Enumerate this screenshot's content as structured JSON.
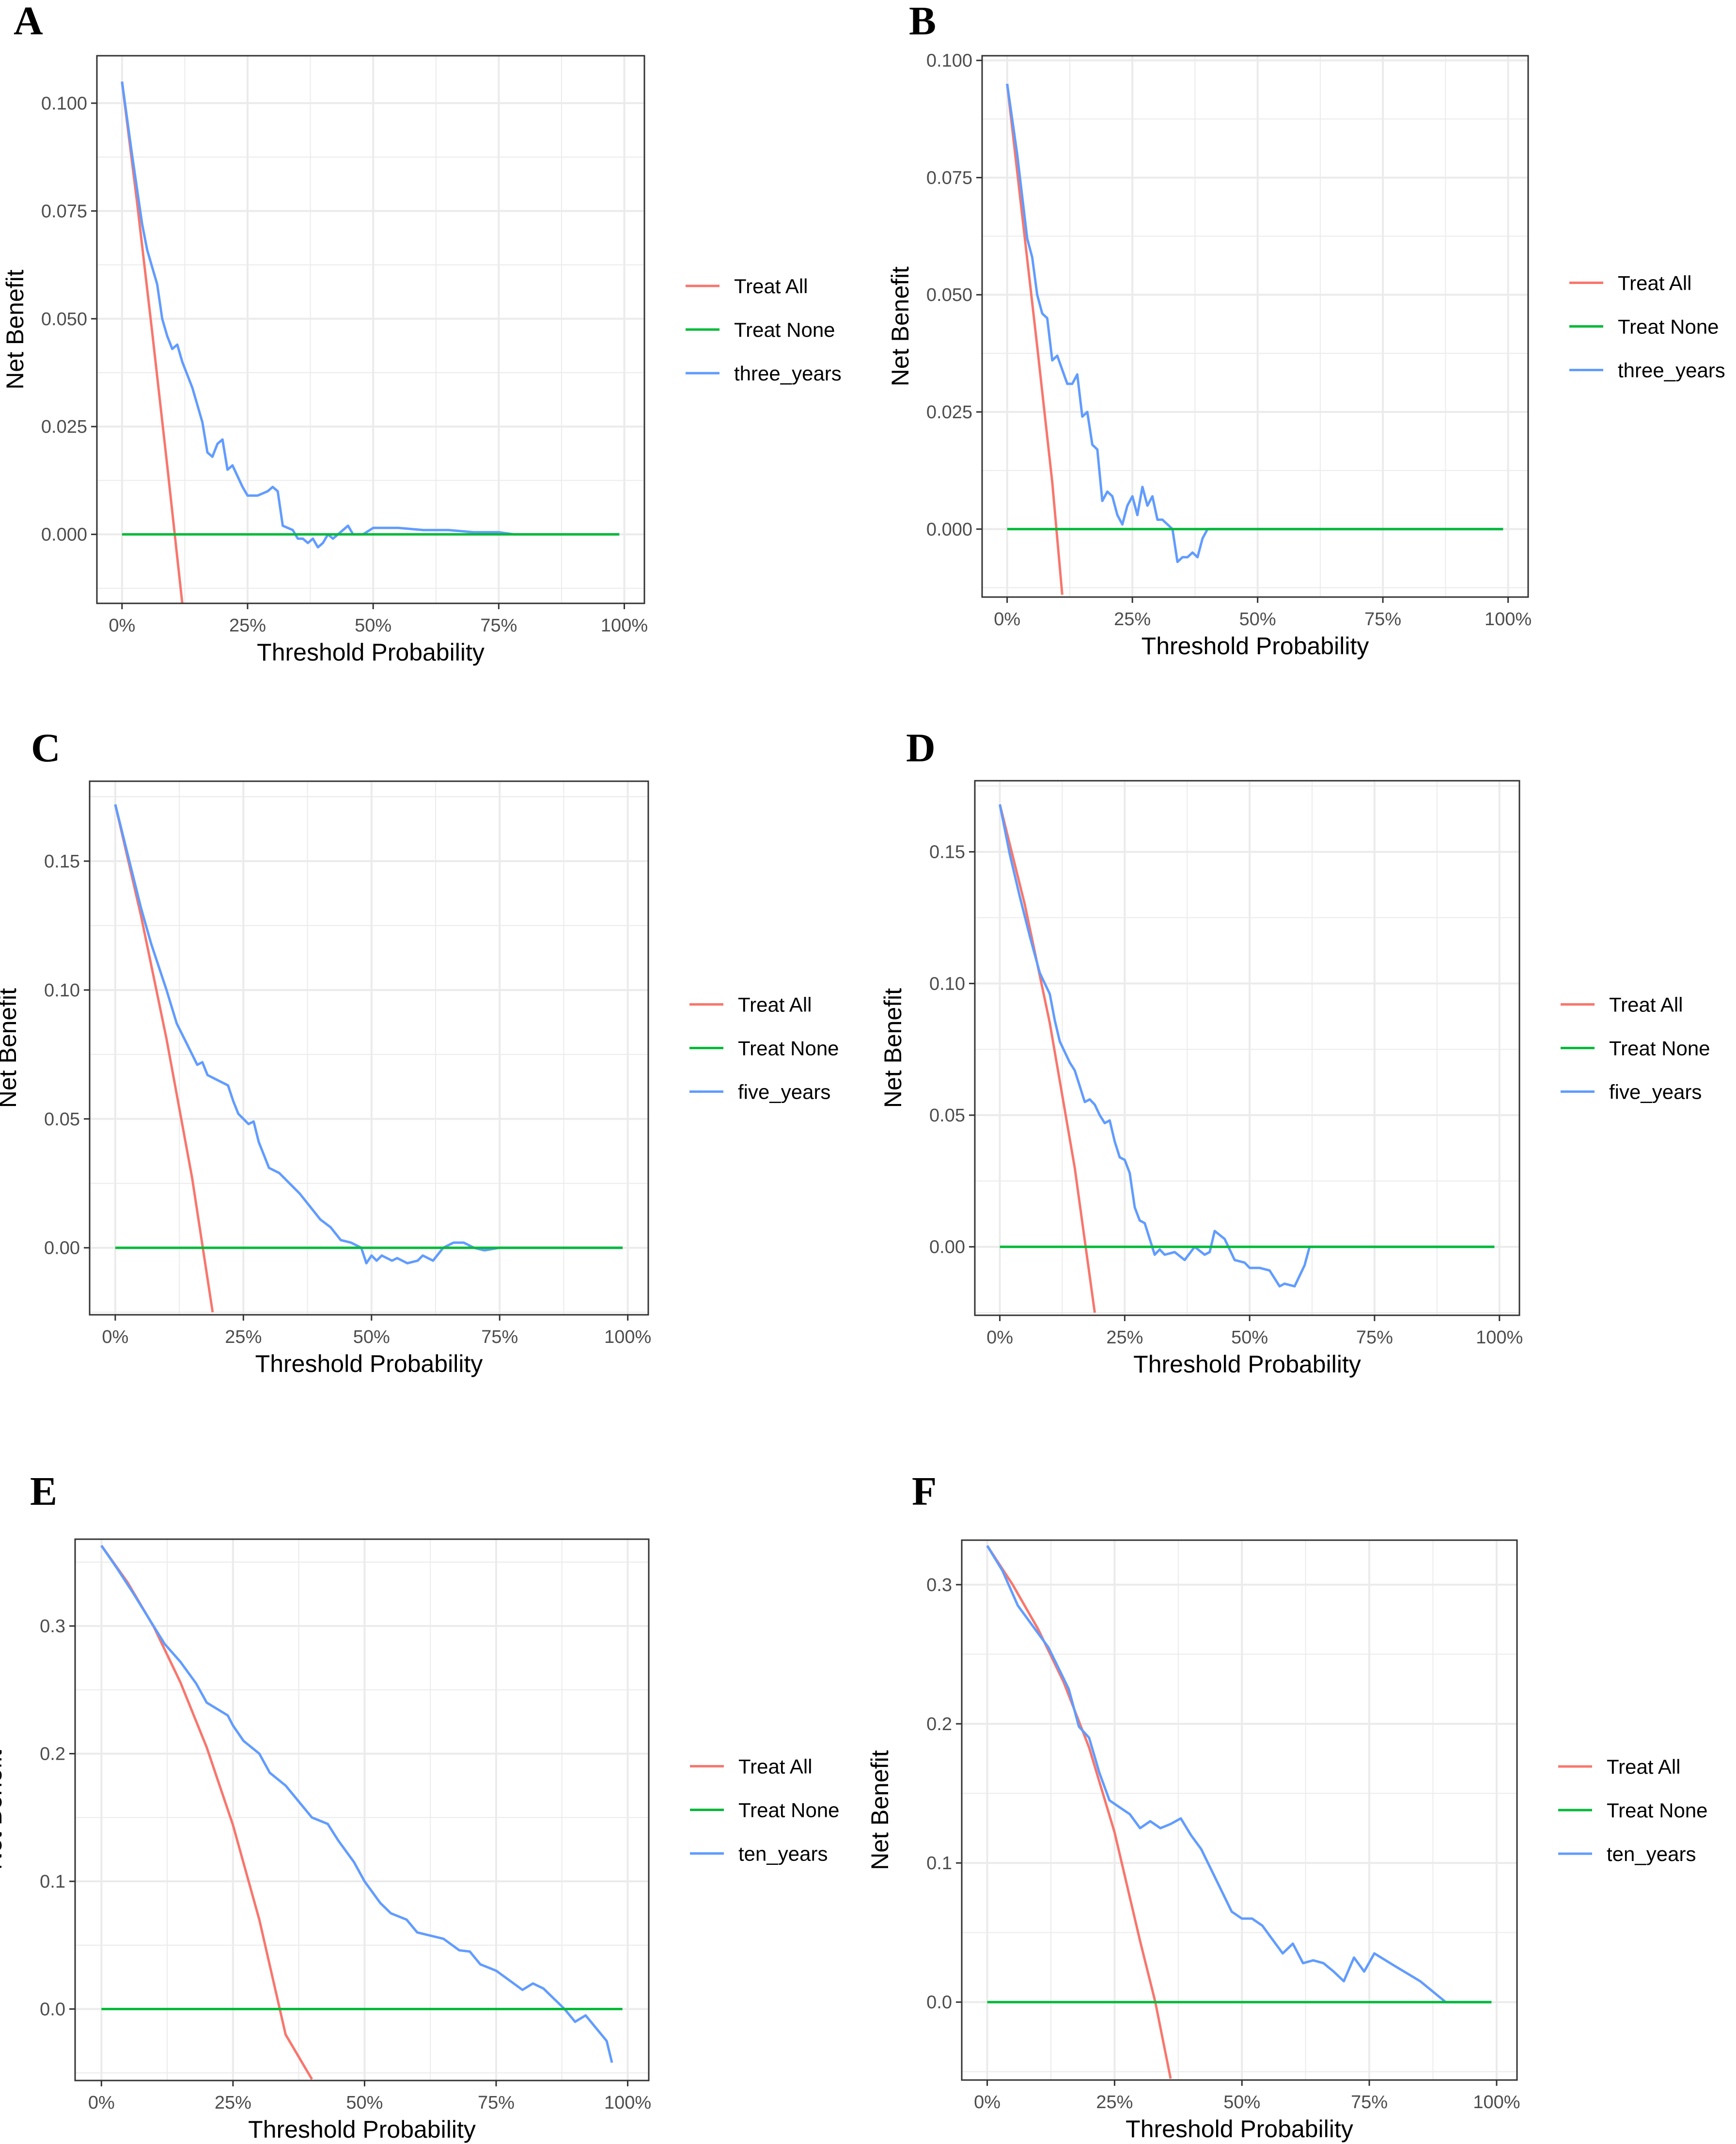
{
  "legend": {
    "treat_all": "Treat All",
    "treat_none": "Treat None"
  },
  "colors": {
    "treat_all": "#F8766D",
    "treat_none": "#00BA38",
    "model": "#619CFF",
    "grid": "#EBEBEB",
    "border": "#333333"
  },
  "chart_data": [
    {
      "panel": "A",
      "type": "line",
      "xlabel": "Threshold Probability",
      "ylabel": "Net Benefit",
      "xlim": [
        -0.05,
        1.04
      ],
      "ylim": [
        -0.016,
        0.111
      ],
      "xticks": [
        0,
        0.25,
        0.5,
        0.75,
        1.0
      ],
      "xtick_labels": [
        "0%",
        "25%",
        "50%",
        "75%",
        "100%"
      ],
      "yticks": [
        0,
        0.025,
        0.05,
        0.075,
        0.1
      ],
      "ytick_labels": [
        "0.000",
        "0.025",
        "0.050",
        "0.075",
        "0.100"
      ],
      "series": [
        {
          "name": "Treat All",
          "x": [
            0,
            0.03,
            0.06,
            0.09,
            0.12
          ],
          "y": [
            0.105,
            0.077,
            0.047,
            0.016,
            -0.016
          ]
        },
        {
          "name": "Treat None",
          "x": [
            0,
            0.99
          ],
          "y": [
            0,
            0
          ]
        },
        {
          "name": "three_years",
          "x": [
            0,
            0.02,
            0.04,
            0.05,
            0.06,
            0.07,
            0.08,
            0.09,
            0.1,
            0.11,
            0.12,
            0.14,
            0.16,
            0.17,
            0.18,
            0.19,
            0.2,
            0.21,
            0.22,
            0.24,
            0.25,
            0.27,
            0.29,
            0.3,
            0.31,
            0.32,
            0.34,
            0.35,
            0.36,
            0.37,
            0.38,
            0.39,
            0.4,
            0.41,
            0.42,
            0.44,
            0.45,
            0.46,
            0.48,
            0.5,
            0.55,
            0.6,
            0.65,
            0.7,
            0.75,
            0.78,
            0.99
          ],
          "y": [
            0.105,
            0.088,
            0.072,
            0.066,
            0.062,
            0.058,
            0.05,
            0.046,
            0.043,
            0.044,
            0.04,
            0.034,
            0.026,
            0.019,
            0.018,
            0.021,
            0.022,
            0.015,
            0.016,
            0.011,
            0.009,
            0.009,
            0.01,
            0.011,
            0.01,
            0.002,
            0.001,
            -0.001,
            -0.001,
            -0.002,
            -0.001,
            -0.003,
            -0.002,
            0.0,
            -0.001,
            0.001,
            0.002,
            0.0,
            0.0,
            0.0015,
            0.0015,
            0.001,
            0.001,
            0.0005,
            0.0005,
            0,
            0
          ]
        }
      ],
      "legend_model": "three_years"
    },
    {
      "panel": "B",
      "type": "line",
      "xlabel": "Threshold Probability",
      "ylabel": "Net Benefit",
      "xlim": [
        -0.05,
        1.04
      ],
      "ylim": [
        -0.0145,
        0.101
      ],
      "xticks": [
        0,
        0.25,
        0.5,
        0.75,
        1.0
      ],
      "xtick_labels": [
        "0%",
        "25%",
        "50%",
        "75%",
        "100%"
      ],
      "yticks": [
        0,
        0.025,
        0.05,
        0.075,
        0.1
      ],
      "ytick_labels": [
        "0.000",
        "0.025",
        "0.050",
        "0.075",
        "0.100"
      ],
      "series": [
        {
          "name": "Treat All",
          "x": [
            0,
            0.03,
            0.06,
            0.09,
            0.11
          ],
          "y": [
            0.095,
            0.067,
            0.039,
            0.01,
            -0.014
          ]
        },
        {
          "name": "Treat None",
          "x": [
            0,
            0.99
          ],
          "y": [
            0,
            0
          ]
        },
        {
          "name": "three_years",
          "x": [
            0,
            0.02,
            0.03,
            0.04,
            0.05,
            0.06,
            0.07,
            0.08,
            0.09,
            0.1,
            0.11,
            0.12,
            0.13,
            0.14,
            0.15,
            0.16,
            0.17,
            0.18,
            0.19,
            0.2,
            0.21,
            0.22,
            0.23,
            0.24,
            0.25,
            0.26,
            0.27,
            0.28,
            0.29,
            0.3,
            0.31,
            0.32,
            0.33,
            0.34,
            0.35,
            0.36,
            0.37,
            0.38,
            0.39,
            0.4,
            0.41,
            0.99
          ],
          "y": [
            0.095,
            0.08,
            0.071,
            0.062,
            0.058,
            0.05,
            0.046,
            0.045,
            0.036,
            0.037,
            0.034,
            0.031,
            0.031,
            0.033,
            0.024,
            0.025,
            0.018,
            0.017,
            0.006,
            0.008,
            0.007,
            0.003,
            0.001,
            0.005,
            0.007,
            0.003,
            0.009,
            0.005,
            0.007,
            0.002,
            0.002,
            0.001,
            0.0,
            -0.007,
            -0.006,
            -0.006,
            -0.005,
            -0.006,
            -0.002,
            0.0,
            0.0,
            0.0
          ]
        }
      ],
      "legend_model": "three_years"
    },
    {
      "panel": "C",
      "type": "line",
      "xlabel": "Threshold Probability",
      "ylabel": "Net Benefit",
      "xlim": [
        -0.05,
        1.04
      ],
      "ylim": [
        -0.026,
        0.181
      ],
      "xticks": [
        0,
        0.25,
        0.5,
        0.75,
        1.0
      ],
      "xtick_labels": [
        "0%",
        "25%",
        "50%",
        "75%",
        "100%"
      ],
      "yticks": [
        0,
        0.05,
        0.1,
        0.15
      ],
      "ytick_labels": [
        "0.00",
        "0.05",
        "0.10",
        "0.15"
      ],
      "series": [
        {
          "name": "Treat All",
          "x": [
            0,
            0.05,
            0.1,
            0.15,
            0.19
          ],
          "y": [
            0.172,
            0.129,
            0.081,
            0.027,
            -0.025
          ]
        },
        {
          "name": "Treat None",
          "x": [
            0,
            0.99
          ],
          "y": [
            0,
            0
          ]
        },
        {
          "name": "five_years",
          "x": [
            0,
            0.03,
            0.05,
            0.07,
            0.09,
            0.1,
            0.12,
            0.14,
            0.16,
            0.17,
            0.18,
            0.2,
            0.22,
            0.23,
            0.24,
            0.26,
            0.27,
            0.28,
            0.3,
            0.32,
            0.34,
            0.36,
            0.38,
            0.4,
            0.42,
            0.44,
            0.46,
            0.48,
            0.49,
            0.5,
            0.51,
            0.52,
            0.54,
            0.55,
            0.57,
            0.59,
            0.6,
            0.62,
            0.64,
            0.66,
            0.68,
            0.7,
            0.72,
            0.75,
            0.8,
            0.99
          ],
          "y": [
            0.172,
            0.148,
            0.132,
            0.118,
            0.106,
            0.1,
            0.087,
            0.079,
            0.071,
            0.072,
            0.067,
            0.065,
            0.063,
            0.057,
            0.052,
            0.048,
            0.049,
            0.041,
            0.031,
            0.029,
            0.025,
            0.021,
            0.016,
            0.011,
            0.008,
            0.003,
            0.002,
            0.0,
            -0.006,
            -0.003,
            -0.005,
            -0.003,
            -0.005,
            -0.004,
            -0.006,
            -0.005,
            -0.003,
            -0.005,
            0.0,
            0.002,
            0.002,
            0.0,
            -0.001,
            0.0,
            0.0,
            0.0
          ]
        }
      ],
      "legend_model": "five_years"
    },
    {
      "panel": "D",
      "type": "line",
      "xlabel": "Threshold Probability",
      "ylabel": "Net Benefit",
      "xlim": [
        -0.05,
        1.04
      ],
      "ylim": [
        -0.026,
        0.177
      ],
      "xticks": [
        0,
        0.25,
        0.5,
        0.75,
        1.0
      ],
      "xtick_labels": [
        "0%",
        "25%",
        "50%",
        "75%",
        "100%"
      ],
      "yticks": [
        0,
        0.05,
        0.1,
        0.15
      ],
      "ytick_labels": [
        "0.00",
        "0.05",
        "0.10",
        "0.15"
      ],
      "series": [
        {
          "name": "Treat All",
          "x": [
            0,
            0.05,
            0.1,
            0.15,
            0.19
          ],
          "y": [
            0.168,
            0.13,
            0.085,
            0.03,
            -0.025
          ]
        },
        {
          "name": "Treat None",
          "x": [
            0,
            0.99
          ],
          "y": [
            0,
            0
          ]
        },
        {
          "name": "five_years",
          "x": [
            0,
            0.02,
            0.04,
            0.06,
            0.08,
            0.1,
            0.11,
            0.12,
            0.13,
            0.14,
            0.15,
            0.16,
            0.17,
            0.18,
            0.19,
            0.2,
            0.21,
            0.22,
            0.23,
            0.24,
            0.25,
            0.26,
            0.27,
            0.28,
            0.29,
            0.3,
            0.31,
            0.32,
            0.33,
            0.35,
            0.37,
            0.39,
            0.41,
            0.42,
            0.43,
            0.45,
            0.47,
            0.49,
            0.5,
            0.52,
            0.54,
            0.56,
            0.57,
            0.59,
            0.61,
            0.62,
            0.99
          ],
          "y": [
            0.168,
            0.149,
            0.133,
            0.118,
            0.104,
            0.096,
            0.086,
            0.078,
            0.074,
            0.07,
            0.067,
            0.061,
            0.055,
            0.056,
            0.054,
            0.05,
            0.047,
            0.048,
            0.04,
            0.034,
            0.033,
            0.028,
            0.015,
            0.01,
            0.009,
            0.003,
            -0.003,
            -0.001,
            -0.003,
            -0.002,
            -0.005,
            0.0,
            -0.003,
            -0.002,
            0.006,
            0.003,
            -0.005,
            -0.006,
            -0.008,
            -0.008,
            -0.009,
            -0.015,
            -0.014,
            -0.015,
            -0.007,
            0.0,
            0.0
          ]
        }
      ],
      "legend_model": "five_years"
    },
    {
      "panel": "E",
      "type": "line",
      "xlabel": "Threshold Probability",
      "ylabel": "Net Benefit",
      "xlim": [
        -0.05,
        1.04
      ],
      "ylim": [
        -0.056,
        0.368
      ],
      "xticks": [
        0,
        0.25,
        0.5,
        0.75,
        1.0
      ],
      "xtick_labels": [
        "0%",
        "25%",
        "50%",
        "75%",
        "100%"
      ],
      "yticks": [
        0,
        0.1,
        0.2,
        0.3
      ],
      "ytick_labels": [
        "0.0",
        "0.1",
        "0.2",
        "0.3"
      ],
      "series": [
        {
          "name": "Treat All",
          "x": [
            0,
            0.05,
            0.1,
            0.15,
            0.2,
            0.25,
            0.3,
            0.35,
            0.4
          ],
          "y": [
            0.363,
            0.334,
            0.299,
            0.256,
            0.205,
            0.144,
            0.07,
            -0.02,
            -0.055
          ]
        },
        {
          "name": "Treat None",
          "x": [
            0,
            0.99
          ],
          "y": [
            0,
            0
          ]
        },
        {
          "name": "ten_years",
          "x": [
            0,
            0.03,
            0.06,
            0.09,
            0.12,
            0.15,
            0.18,
            0.2,
            0.22,
            0.24,
            0.25,
            0.27,
            0.3,
            0.32,
            0.35,
            0.38,
            0.4,
            0.43,
            0.45,
            0.48,
            0.5,
            0.53,
            0.55,
            0.58,
            0.6,
            0.62,
            0.65,
            0.68,
            0.7,
            0.72,
            0.75,
            0.78,
            0.8,
            0.82,
            0.84,
            0.86,
            0.88,
            0.9,
            0.92,
            0.94,
            0.96,
            0.97
          ],
          "y": [
            0.363,
            0.345,
            0.326,
            0.306,
            0.286,
            0.272,
            0.255,
            0.24,
            0.235,
            0.23,
            0.222,
            0.21,
            0.2,
            0.185,
            0.175,
            0.16,
            0.15,
            0.145,
            0.132,
            0.115,
            0.1,
            0.083,
            0.075,
            0.07,
            0.06,
            0.058,
            0.055,
            0.046,
            0.045,
            0.035,
            0.03,
            0.021,
            0.015,
            0.02,
            0.016,
            0.008,
            0.0,
            -0.01,
            -0.005,
            -0.015,
            -0.025,
            -0.042
          ]
        }
      ],
      "legend_model": "ten_years"
    },
    {
      "panel": "F",
      "type": "line",
      "xlabel": "Threshold Probability",
      "ylabel": "Net Benefit",
      "xlim": [
        -0.05,
        1.04
      ],
      "ylim": [
        -0.056,
        0.332
      ],
      "xticks": [
        0,
        0.25,
        0.5,
        0.75,
        1.0
      ],
      "xtick_labels": [
        "0%",
        "25%",
        "50%",
        "75%",
        "100%"
      ],
      "yticks": [
        0,
        0.1,
        0.2,
        0.3
      ],
      "ytick_labels": [
        "0.0",
        "0.1",
        "0.2",
        "0.3"
      ],
      "series": [
        {
          "name": "Treat All",
          "x": [
            0,
            0.05,
            0.1,
            0.15,
            0.2,
            0.25,
            0.3,
            0.33,
            0.36
          ],
          "y": [
            0.328,
            0.3,
            0.268,
            0.23,
            0.183,
            0.122,
            0.044,
            0.0,
            -0.055
          ]
        },
        {
          "name": "Treat None",
          "x": [
            0,
            0.99
          ],
          "y": [
            0,
            0
          ]
        },
        {
          "name": "ten_years",
          "x": [
            0,
            0.03,
            0.06,
            0.09,
            0.12,
            0.14,
            0.16,
            0.18,
            0.2,
            0.22,
            0.24,
            0.26,
            0.28,
            0.3,
            0.32,
            0.34,
            0.36,
            0.38,
            0.4,
            0.42,
            0.44,
            0.46,
            0.48,
            0.5,
            0.52,
            0.54,
            0.56,
            0.58,
            0.6,
            0.62,
            0.64,
            0.66,
            0.68,
            0.7,
            0.72,
            0.74,
            0.76,
            0.8,
            0.85,
            0.9,
            0.99
          ],
          "y": [
            0.328,
            0.31,
            0.285,
            0.27,
            0.255,
            0.24,
            0.225,
            0.198,
            0.19,
            0.165,
            0.145,
            0.14,
            0.135,
            0.125,
            0.13,
            0.125,
            0.128,
            0.132,
            0.12,
            0.11,
            0.095,
            0.08,
            0.065,
            0.06,
            0.06,
            0.055,
            0.045,
            0.035,
            0.042,
            0.028,
            0.03,
            0.028,
            0.022,
            0.015,
            0.032,
            0.022,
            0.035,
            0.026,
            0.015,
            0.0,
            0.0
          ]
        }
      ],
      "legend_model": "ten_years"
    }
  ]
}
